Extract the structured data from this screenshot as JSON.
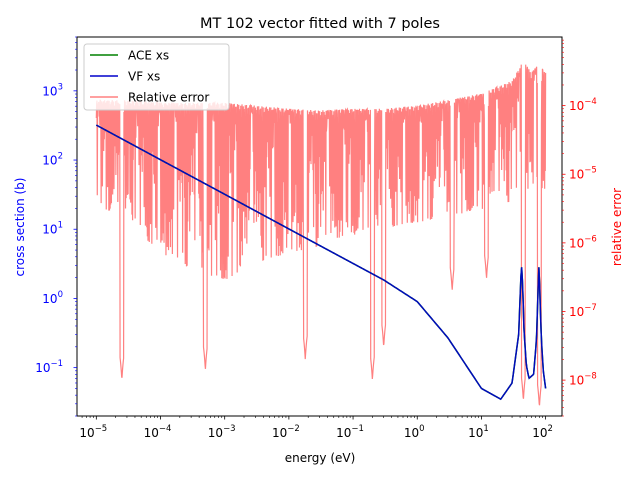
{
  "chart_data": {
    "type": "line",
    "title": "MT 102 vector fitted with 7 poles",
    "xlabel": "energy (eV)",
    "ylabel": "cross section (b)",
    "y2label": "relative error",
    "x_scale": "log",
    "y_scale": "log",
    "y2_scale": "log",
    "xlim": [
      5e-06,
      180
    ],
    "ylim": [
      0.02,
      6000
    ],
    "y2lim": [
      3e-09,
      0.001
    ],
    "x_ticks": [
      {
        "value": 1e-05,
        "label": "10",
        "exp": "−5"
      },
      {
        "value": 0.0001,
        "label": "10",
        "exp": "−4"
      },
      {
        "value": 0.001,
        "label": "10",
        "exp": "−3"
      },
      {
        "value": 0.01,
        "label": "10",
        "exp": "−2"
      },
      {
        "value": 0.1,
        "label": "10",
        "exp": "−1"
      },
      {
        "value": 1,
        "label": "10",
        "exp": "0"
      },
      {
        "value": 10,
        "label": "10",
        "exp": "1"
      },
      {
        "value": 100,
        "label": "10",
        "exp": "2"
      }
    ],
    "y_ticks": [
      {
        "value": 0.1,
        "label": "10",
        "exp": "−1"
      },
      {
        "value": 1,
        "label": "10",
        "exp": "0"
      },
      {
        "value": 10,
        "label": "10",
        "exp": "1"
      },
      {
        "value": 100,
        "label": "10",
        "exp": "2"
      },
      {
        "value": 1000,
        "label": "10",
        "exp": "3"
      }
    ],
    "y2_ticks": [
      {
        "value": 1e-08,
        "label": "10",
        "exp": "−8"
      },
      {
        "value": 1e-07,
        "label": "10",
        "exp": "−7"
      },
      {
        "value": 1e-06,
        "label": "10",
        "exp": "−6"
      },
      {
        "value": 1e-05,
        "label": "10",
        "exp": "−5"
      },
      {
        "value": 0.0001,
        "label": "10",
        "exp": "−4"
      }
    ],
    "legend_position": "upper-left",
    "series": [
      {
        "name": "ACE xs",
        "axis": "left",
        "color": "#008000",
        "x": [
          1e-05,
          0.0001,
          0.001,
          0.01,
          0.1,
          0.3,
          1,
          3,
          10,
          20,
          30,
          38,
          42,
          44,
          46,
          50,
          55,
          65,
          72,
          76,
          79,
          82,
          86,
          92,
          100
        ],
        "y": [
          320,
          101,
          32,
          10.1,
          3.2,
          1.85,
          0.9,
          0.27,
          0.05,
          0.035,
          0.06,
          0.3,
          3.2,
          1.5,
          0.35,
          0.11,
          0.07,
          0.08,
          0.25,
          1.2,
          3.3,
          0.9,
          0.25,
          0.09,
          0.05
        ]
      },
      {
        "name": "VF xs",
        "axis": "left",
        "color": "#0000cc",
        "x": [
          1e-05,
          0.0001,
          0.001,
          0.01,
          0.1,
          0.3,
          1,
          3,
          10,
          20,
          30,
          38,
          42,
          44,
          46,
          50,
          55,
          65,
          72,
          76,
          79,
          82,
          86,
          92,
          100
        ],
        "y": [
          320,
          101,
          32,
          10.1,
          3.2,
          1.85,
          0.9,
          0.27,
          0.05,
          0.035,
          0.06,
          0.3,
          3.2,
          1.5,
          0.35,
          0.11,
          0.07,
          0.08,
          0.25,
          1.2,
          3.3,
          0.9,
          0.25,
          0.09,
          0.05
        ]
      },
      {
        "name": "Relative error",
        "axis": "right",
        "color": "#ff8080",
        "envelope_x": [
          1e-05,
          3e-05,
          0.0001,
          0.0003,
          0.001,
          0.003,
          0.01,
          0.03,
          0.1,
          0.3,
          1,
          3,
          10,
          30,
          45,
          60,
          80,
          100
        ],
        "envelope_upper": [
          0.00012,
          0.00012,
          0.00011,
          0.00011,
          0.00011,
          0.0001,
          9e-05,
          8.5e-05,
          9e-05,
          9e-05,
          0.0001,
          0.00012,
          0.00015,
          0.00023,
          0.00045,
          0.0003,
          0.00042,
          0.0003
        ],
        "envelope_lower_typical": [
          2e-06,
          1e-06,
          3e-07,
          1.5e-07,
          1e-07,
          2e-07,
          3e-07,
          4e-07,
          6e-07,
          8e-07,
          1e-06,
          1.2e-06,
          1.5e-06,
          2e-06,
          3e-06,
          3e-06,
          3e-06,
          3e-06
        ],
        "dip_energies": [
          2.5e-05,
          0.0005,
          0.018,
          0.2,
          0.3,
          3.5,
          12,
          45,
          80
        ],
        "dip_values": [
          1e-08,
          1.4e-08,
          2e-08,
          1e-08,
          3e-08,
          2e-07,
          3e-07,
          5e-09,
          4e-09
        ]
      }
    ]
  }
}
